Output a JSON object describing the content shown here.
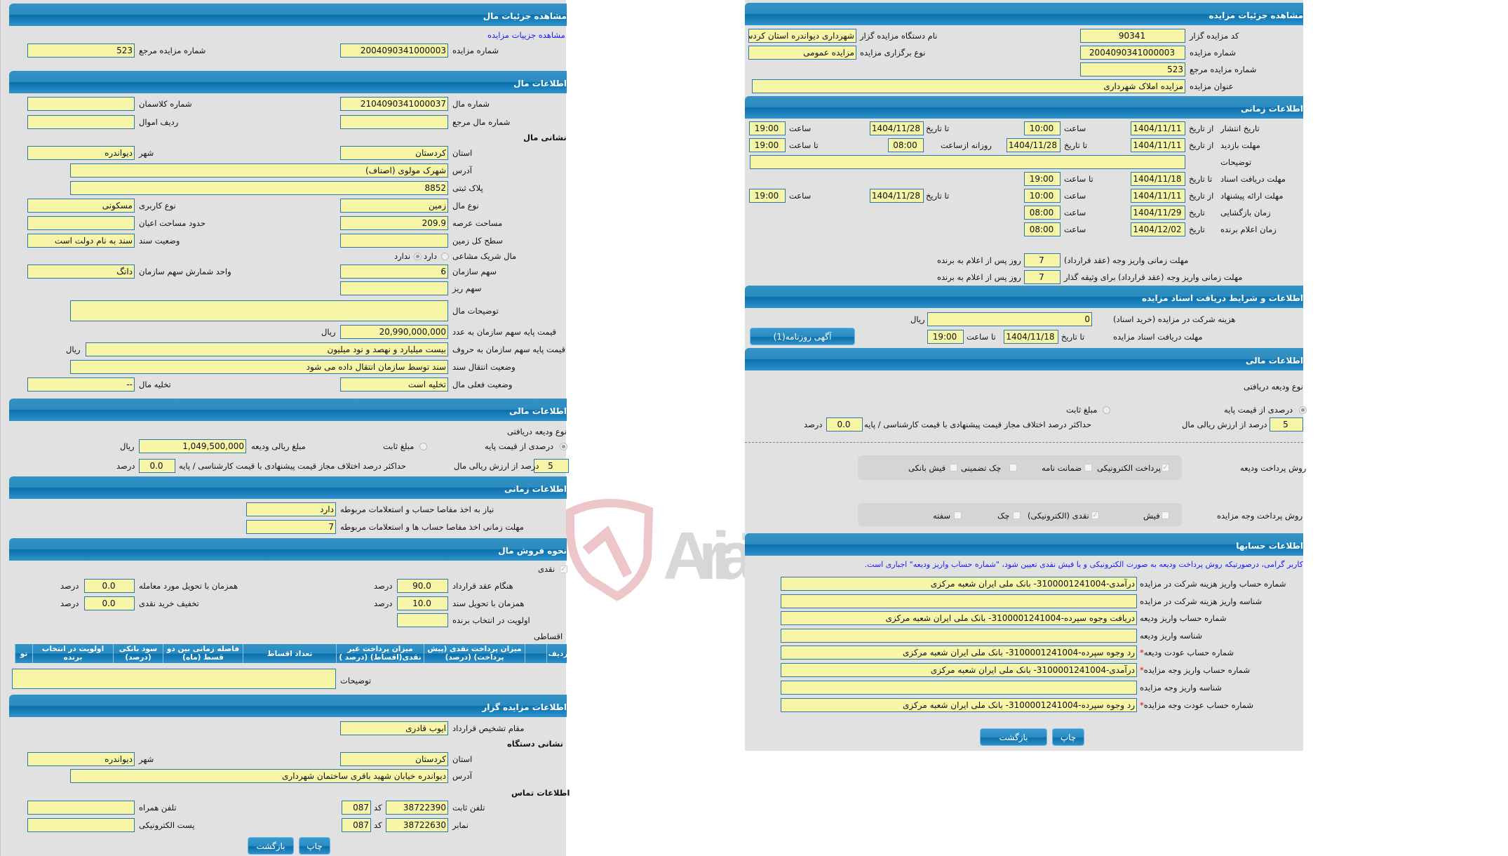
{
  "left": {
    "header": "مشاهده جزئیات مال",
    "link": "مشاهده جزییات مزایده",
    "auction_number_label": "شماره مزایده",
    "auction_number": "2004090341000003",
    "ref_label": "شماره مزایده مرجع",
    "ref": "523",
    "item_section": "اطلاعات مال",
    "item_number_label": "شماره مال",
    "item_number": "2104090341000037",
    "class_label": "شماره کلاسمان",
    "ref_item_label": "شماره مال مرجع",
    "assets_row_label": "ردیف اموال",
    "address_heading": "نشانی مال",
    "province_label": "استان",
    "province": "کردستان",
    "city_label": "شهر",
    "city": "دیواندره",
    "address_label": "آدرس",
    "address": "شهرک مولوی (اصناف)",
    "plate_label": "پلاک ثبتی",
    "plate": "8852",
    "type_label": "نوع مال",
    "type": "زمین",
    "usage_label": "نوع کاربری",
    "usage": "مسکونی",
    "area_label": "مساحت عرصه",
    "area": "209.9",
    "building_label": "حدود مساحت اعیان",
    "land_label": "سطح کل زمین",
    "deed_label": "وضعیت سند",
    "deed": "سند به نام دولت است",
    "shared_label": "مال شریک مشاعی",
    "yes": "دارد",
    "no": "ندارد",
    "share_label": "سهم سازمان",
    "share": "6",
    "unit_label": "واحد شمارش سهم سازمان",
    "unit": "دانگ",
    "subshare_label": "سهم ریز",
    "desc_label": "توضیحات مال",
    "price_num_label": "قیمت پایه سهم سازمان به عدد",
    "price_num": "20,990,000,000",
    "rial": "ریال",
    "price_words_label": "قیمت پایه سهم سازمان به حروف",
    "price_words": "بیست میلیارد و نهصد و نود میلیون",
    "transfer_label": "وضعیت انتقال سند",
    "transfer": "سند توسط سازمان انتقال داده می شود",
    "status_label": "وضعیت فعلی مال",
    "status": "تخلیه است",
    "evac_label": "تخلیه مال",
    "evac": "--",
    "financial": {
      "header": "اطلاعات مالی",
      "deposit_type": "نوع ودیعه دریافتی",
      "percent_opt": "درصدی از قیمت پایه",
      "fixed_opt": "مبلغ ثابت",
      "amount_label": "مبلغ ریالی ودیعه",
      "amount": "1,049,500,000",
      "rial": "ریال",
      "pct": "5",
      "pct_label": "درصد از ارزش ریالی مال",
      "max_label": "حداکثر درصد اختلاف مجاز قیمت پیشنهادی با قیمت کارشناسی / پایه",
      "max": "0.0",
      "percent": "درصد"
    },
    "time": {
      "header": "اطلاعات زمانی",
      "need_label": "نیاز به اخذ مفاصا حساب و استعلامات مربوطه",
      "need": "دارد",
      "deadline_label": "مهلت زمانی اخذ مفاصا حساب ها و استعلامات مربوطه",
      "deadline": "7"
    },
    "sale": {
      "header": "نحوه فروش مال",
      "cash": "نقدی",
      "contract_label": "هنگام عقد قرارداد",
      "contract": "90.0",
      "delivery_label": "همزمان با تحویل مورد معامله",
      "delivery": "0.0",
      "deed_label": "همزمان با تحویل سند",
      "deed": "10.0",
      "discount_label": "تخفیف خرید نقدی",
      "discount": "0.0",
      "percent": "درصد",
      "priority_label": "اولویت در انتخاب برنده",
      "installment": "اقساطی",
      "table_headers": [
        "ردیف",
        "",
        "میزان پرداخت نقدی (پیش پرداخت) (درصد)",
        "میزان پرداخت غیر نقدی(اقساط) (درصد )",
        "تعداد اقساط",
        "فاصله زمانی بین دو قسط (ماه)",
        "سود بانکی (درصد)",
        "اولویت در انتخاب برنده",
        "تو"
      ],
      "desc_label": "توضیحات"
    },
    "seller": {
      "header": "اطلاعات مزایده گزار",
      "authority_label": "مقام تشخیص قرارداد",
      "authority": "ایوب قادری",
      "address_heading": "نشانی دستگاه",
      "province_label": "استان",
      "province": "کردستان",
      "city_label": "شهر",
      "city": "دیواندره",
      "address_label": "آدرس",
      "address": "دیواندره خیابان شهید باقری ساختمان شهرداری",
      "contact_heading": "اطلاعات تماس",
      "phone_label": "تلفن ثابت",
      "phone": "38722390",
      "code_label": "کد",
      "code": "087",
      "mobile_label": "تلفن همراه",
      "fax_label": "نمابر",
      "fax": "38722630",
      "fax_code": "087",
      "email_label": "پست الکترونیکی"
    },
    "buttons": {
      "back": "بازگشت",
      "print": "چاپ"
    }
  },
  "right": {
    "header": "مشاهده جزئیات مزایده",
    "seller_code_label": "کد مزایده گزار",
    "seller_code": "90341",
    "org_label": "نام دستگاه مزایده گزار",
    "org": "شهرداری دیواندره استان کردستان",
    "auction_number_label": "شماره مزایده",
    "auction_number": "2004090341000003",
    "kind_label": "نوع برگزاری مزایده",
    "kind": "مزایده عمومی",
    "ref_label": "شماره مزایده مرجع",
    "ref": "523",
    "title_label": "عنوان مزایده",
    "title": "مزایده املاک شهرداری",
    "time": {
      "header": "اطلاعات زمانی",
      "from_date": "از تاریخ",
      "to_date": "تا تاریخ",
      "date": "تاریخ",
      "time": "ساعت",
      "to_time": "تا ساعت",
      "daily_from": "روزانه ازساعت",
      "publish_label": "تاریخ انتشار",
      "publish_from": "1404/11/11",
      "publish_from_time": "10:00",
      "publish_to": "1404/11/28",
      "publish_to_time": "19:00",
      "visit_label": "مهلت بازدید",
      "visit_from": "1404/11/11",
      "visit_to": "1404/11/28",
      "visit_daily": "08:00",
      "visit_to_time": "19:00",
      "desc_label": "توضیحات",
      "docs_label": "مهلت دریافت اسناد",
      "docs_to": "1404/11/18",
      "docs_time": "19:00",
      "offer_label": "مهلت ارائه پیشنهاد",
      "offer_from": "1404/11/11",
      "offer_from_time": "10:00",
      "offer_to": "1404/11/28",
      "offer_to_time": "19:00",
      "opening_label": "زمان بازگشایی",
      "opening_date": "1404/11/29",
      "opening_time": "08:00",
      "winner_label": "زمان اعلام برنده",
      "winner_date": "1404/12/02",
      "winner_time": "08:00",
      "pay_label": "مهلت زمانی واریز وجه (عقد قرارداد)",
      "pay": "7",
      "pay_suffix": "روز پس از اعلام به برنده",
      "pay_guarantor_label": "مهلت زمانی واریز وجه (عقد قرارداد) برای وثیقه گذار",
      "pay_guarantor": "7"
    },
    "docs": {
      "header": "اطلاعات و شرایط دریافت اسناد مزایده",
      "fee_label": "هزینه شرکت در مزایده (خرید اسناد)",
      "fee": "0",
      "rial": "ریال",
      "deadline_label": "مهلت دریافت اسناد مزایده",
      "to_date": "تا تاریخ",
      "date": "1404/11/18",
      "to_time": "تا ساعت",
      "time": "19:00",
      "ad_button": "آگهی روزنامه(1)"
    },
    "financial": {
      "header": "اطلاعات مالی",
      "deposit_type": "نوع ودیعه دریافتی",
      "percent_opt": "درصدی از قیمت پایه",
      "fixed_opt": "مبلغ ثابت",
      "pct": "5",
      "pct_label": "درصد از ارزش ریالی مال",
      "max_label": "حداکثر درصد اختلاف مجاز قیمت پیشنهادی با قیمت کارشناسی / پایه",
      "max": "0.0",
      "percent": "درصد",
      "deposit_method_label": "روش پرداخت ودیعه",
      "deposit_methods": [
        {
          "label": "پرداخت الکترونیکی",
          "checked": true
        },
        {
          "label": "ضمانت نامه",
          "checked": false
        },
        {
          "label": "چک تضمینی",
          "checked": false
        },
        {
          "label": "فیش بانکی",
          "checked": false
        }
      ],
      "payment_method_label": "روش پرداخت وجه مزایده",
      "payment_methods": [
        {
          "label": "فیش",
          "checked": false
        },
        {
          "label": "نقدی (الکترونیکی)",
          "checked": true
        },
        {
          "label": "چک",
          "checked": false
        },
        {
          "label": "سفته",
          "checked": false
        }
      ]
    },
    "accounts": {
      "header": "اطلاعات حسابها",
      "note": "کاربر گرامی، درصورتیکه روش پرداخت ودیعه به صورت الکترونیکی و یا فیش نقدی تعیین شود، \"شماره حساب واریز ودیعه\" اجباری است.",
      "rows": [
        {
          "label": "شماره حساب واریز هزینه شرکت در مزایده",
          "value": "درآمدی-310000124100­4- بانک ملی ایران شعبه مرکزی",
          "required": false
        },
        {
          "label": "شناسه واریز هزینه شرکت در مزایده",
          "value": "",
          "required": false
        },
        {
          "label": "شماره حساب واریز ودیعه",
          "value": "دریافت وجوه سپرده-3100001241004- بانک ملی ایران شعبه مرکزی",
          "required": false
        },
        {
          "label": "شناسه واریز ودیعه",
          "value": "",
          "required": false
        },
        {
          "label": "شماره حساب عودت ودیعه",
          "value": "رد وجوه سپرده-3100001241004- بانک ملی ایران شعبه مرکزی",
          "required": true
        },
        {
          "label": "شماره حساب واریز وجه مزایده",
          "value": "درآمدی-3100001241004- بانک ملی ایران شعبه مرکزی",
          "required": true
        },
        {
          "label": "شناسه واریز وجه مزایده",
          "value": "",
          "required": false
        },
        {
          "label": "شماره حساب عودت وجه مزایده",
          "value": "رد وجوه سپرده-3100001241004- بانک ملی ایران شعبه مرکزی",
          "required": true
        }
      ]
    },
    "buttons": {
      "back": "بازگشت",
      "print": "چاپ"
    }
  },
  "watermark": {
    "text": "AriaTender.neT"
  },
  "colors": {
    "header": "#0a6fab",
    "field": "#f7f5a7",
    "field_border": "#2b78ad",
    "panel": "#e1e1e1",
    "link": "#1a1aff",
    "required": "#e00000"
  }
}
